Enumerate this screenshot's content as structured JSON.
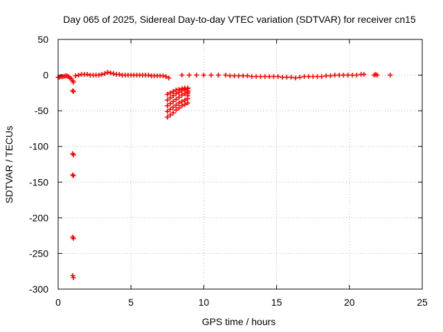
{
  "chart_data": {
    "type": "scatter",
    "title": "Day 065 of 2025, Sidereal Day-to-day VTEC variation (SDTVAR) for receiver cn15",
    "xlabel": "GPS time / hours",
    "ylabel": "SDTVAR / TECUs",
    "xlim": [
      0,
      25
    ],
    "ylim": [
      -300,
      50
    ],
    "xticks": [
      0,
      5,
      10,
      15,
      20,
      25
    ],
    "yticks": [
      50,
      0,
      -50,
      -100,
      -150,
      -200,
      -250,
      -300
    ],
    "grid": true,
    "marker": "+",
    "color": "#ff0000",
    "series": [
      {
        "name": "SDTVAR",
        "points": [
          [
            0.0,
            -3
          ],
          [
            0.1,
            -3
          ],
          [
            0.2,
            -2
          ],
          [
            0.3,
            -2
          ],
          [
            0.4,
            -2
          ],
          [
            0.5,
            -1
          ],
          [
            0.6,
            -1
          ],
          [
            0.7,
            -2
          ],
          [
            0.8,
            -4
          ],
          [
            0.9,
            -5
          ],
          [
            1.0,
            -8
          ],
          [
            1.05,
            -10
          ],
          [
            1.0,
            -22
          ],
          [
            1.05,
            -23
          ],
          [
            1.0,
            -110
          ],
          [
            1.05,
            -112
          ],
          [
            1.0,
            -140
          ],
          [
            1.05,
            -141
          ],
          [
            1.0,
            -227
          ],
          [
            1.05,
            -229
          ],
          [
            1.0,
            -281
          ],
          [
            1.05,
            -284
          ],
          [
            1.2,
            -1
          ],
          [
            1.4,
            0
          ],
          [
            1.6,
            1
          ],
          [
            1.8,
            1
          ],
          [
            2.0,
            1
          ],
          [
            2.2,
            0
          ],
          [
            2.4,
            0
          ],
          [
            2.6,
            0
          ],
          [
            2.8,
            0
          ],
          [
            3.0,
            1
          ],
          [
            3.2,
            2
          ],
          [
            3.4,
            4
          ],
          [
            3.6,
            3
          ],
          [
            3.8,
            2
          ],
          [
            4.0,
            1
          ],
          [
            4.2,
            1
          ],
          [
            4.4,
            0
          ],
          [
            4.6,
            0
          ],
          [
            4.8,
            0
          ],
          [
            5.0,
            0
          ],
          [
            5.2,
            0
          ],
          [
            5.4,
            0
          ],
          [
            5.6,
            0
          ],
          [
            5.8,
            0
          ],
          [
            6.0,
            0
          ],
          [
            6.2,
            0
          ],
          [
            6.4,
            -1
          ],
          [
            6.6,
            -1
          ],
          [
            6.8,
            -1
          ],
          [
            7.0,
            -1
          ],
          [
            7.2,
            -1
          ],
          [
            7.4,
            -2
          ],
          [
            7.6,
            -4
          ],
          [
            7.5,
            -27
          ],
          [
            7.7,
            -25
          ],
          [
            7.9,
            -23
          ],
          [
            8.1,
            -21
          ],
          [
            8.3,
            -20
          ],
          [
            8.5,
            -19
          ],
          [
            8.7,
            -18
          ],
          [
            8.9,
            -18
          ],
          [
            7.5,
            -35
          ],
          [
            7.7,
            -32
          ],
          [
            7.9,
            -29
          ],
          [
            8.1,
            -26
          ],
          [
            8.3,
            -24
          ],
          [
            8.5,
            -22
          ],
          [
            8.7,
            -20
          ],
          [
            8.9,
            -19
          ],
          [
            7.5,
            -43
          ],
          [
            7.7,
            -40
          ],
          [
            7.9,
            -37
          ],
          [
            8.1,
            -34
          ],
          [
            8.3,
            -31
          ],
          [
            8.5,
            -28
          ],
          [
            8.7,
            -26
          ],
          [
            8.9,
            -24
          ],
          [
            7.5,
            -51
          ],
          [
            7.7,
            -48
          ],
          [
            7.9,
            -45
          ],
          [
            8.1,
            -42
          ],
          [
            8.3,
            -39
          ],
          [
            8.5,
            -37
          ],
          [
            8.7,
            -35
          ],
          [
            8.9,
            -33
          ],
          [
            7.5,
            -59
          ],
          [
            7.7,
            -56
          ],
          [
            7.9,
            -53
          ],
          [
            8.1,
            -49
          ],
          [
            8.3,
            -46
          ],
          [
            8.5,
            -43
          ],
          [
            8.7,
            -41
          ],
          [
            8.9,
            -39
          ],
          [
            8.9,
            -22
          ],
          [
            8.9,
            -26
          ],
          [
            8.9,
            -29
          ],
          [
            8.5,
            0
          ],
          [
            9.0,
            0
          ],
          [
            9.5,
            0
          ],
          [
            10.0,
            0
          ],
          [
            10.5,
            0
          ],
          [
            11.0,
            0
          ],
          [
            11.5,
            0
          ],
          [
            11.8,
            -1
          ],
          [
            12.1,
            -1
          ],
          [
            12.4,
            -1
          ],
          [
            12.7,
            -1
          ],
          [
            13.0,
            -1
          ],
          [
            13.3,
            -2
          ],
          [
            13.6,
            -2
          ],
          [
            13.9,
            -2
          ],
          [
            14.2,
            -2
          ],
          [
            14.5,
            -2
          ],
          [
            14.8,
            -2
          ],
          [
            15.1,
            -2
          ],
          [
            15.4,
            -3
          ],
          [
            15.7,
            -3
          ],
          [
            16.0,
            -3
          ],
          [
            16.3,
            -4
          ],
          [
            16.6,
            -3
          ],
          [
            16.9,
            -2
          ],
          [
            17.2,
            -2
          ],
          [
            17.5,
            -2
          ],
          [
            17.8,
            -2
          ],
          [
            18.1,
            -2
          ],
          [
            18.4,
            -1
          ],
          [
            18.7,
            -1
          ],
          [
            19.0,
            0
          ],
          [
            19.3,
            0
          ],
          [
            19.6,
            0
          ],
          [
            19.9,
            0
          ],
          [
            20.2,
            0
          ],
          [
            20.5,
            0
          ],
          [
            20.8,
            1
          ],
          [
            21.0,
            1
          ],
          [
            21.7,
            0
          ],
          [
            21.8,
            1
          ],
          [
            21.9,
            0
          ],
          [
            22.8,
            0
          ]
        ]
      }
    ]
  }
}
